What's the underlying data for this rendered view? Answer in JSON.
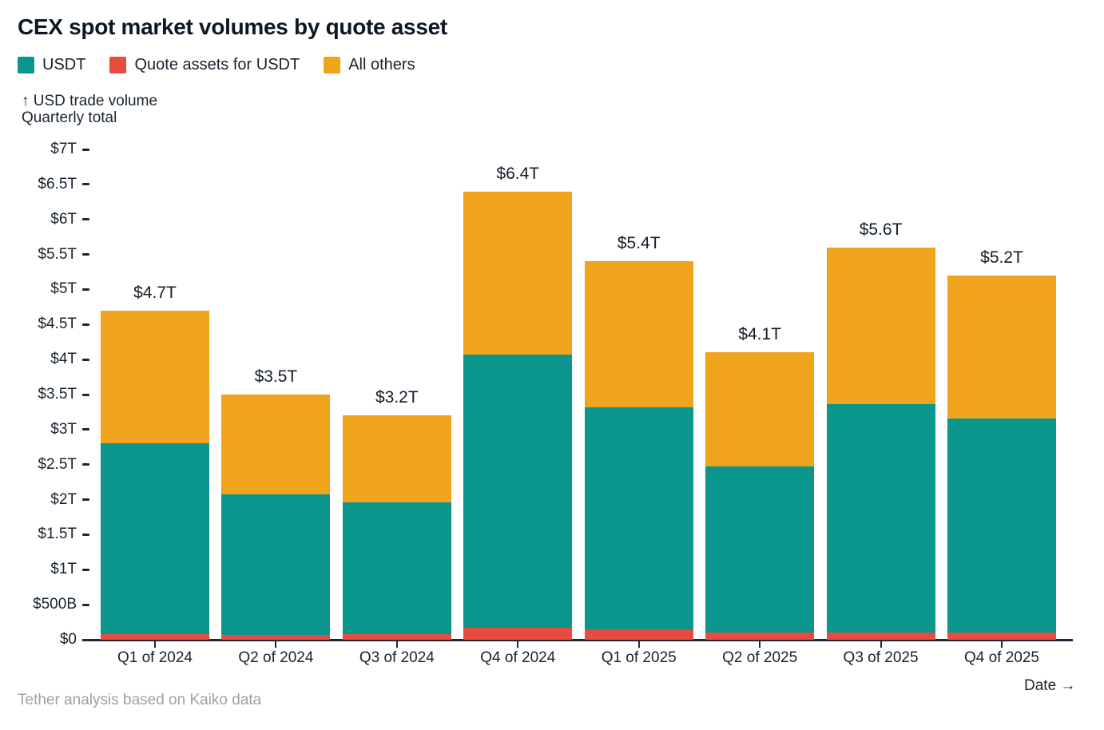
{
  "title": "CEX spot market volumes by quote asset",
  "legend": [
    {
      "label": "USDT",
      "color": "#0a968c"
    },
    {
      "label": "Quote assets for USDT",
      "color": "#e84b40"
    },
    {
      "label": "All others",
      "color": "#f0a41e"
    }
  ],
  "y_axis_title_line1": "↑ USD trade volume",
  "y_axis_title_line2": "Quarterly total",
  "x_axis_label": "Date →",
  "footer": "Tether analysis based on Kaiko data",
  "colors": {
    "usdt_teal": "#0a968c",
    "quote_red": "#e84b40",
    "others_orange": "#f0a41e",
    "text_dark": "#142130",
    "text_gray": "#9aa2a9",
    "axis_line": "#1f2a36"
  },
  "chart_data": {
    "type": "bar",
    "stacked": true,
    "title": "CEX spot market volumes by quote asset",
    "xlabel": "Date",
    "ylabel": "USD trade volume, Quarterly total",
    "ylim": [
      0,
      7
    ],
    "ylim_unit": "trillion USD",
    "grid": false,
    "legend_position": "top-left",
    "categories": [
      "Q1 of 2024",
      "Q2 of 2024",
      "Q3 of 2024",
      "Q4 of 2024",
      "Q1 of 2025",
      "Q2 of 2025",
      "Q3 of 2025",
      "Q4 of 2025"
    ],
    "stack_order_bottom_to_top": [
      "Quote assets for USDT",
      "USDT",
      "All others"
    ],
    "series": [
      {
        "name": "Quote assets for USDT",
        "color": "#e84b40",
        "values": [
          0.08,
          0.07,
          0.08,
          0.17,
          0.15,
          0.1,
          0.1,
          0.1
        ]
      },
      {
        "name": "USDT",
        "color": "#0a968c",
        "values": [
          2.72,
          2.01,
          1.88,
          3.9,
          3.17,
          2.37,
          3.26,
          3.06
        ]
      },
      {
        "name": "All others",
        "color": "#f0a41e",
        "values": [
          1.9,
          1.42,
          1.24,
          2.33,
          2.08,
          1.63,
          2.24,
          2.04
        ]
      }
    ],
    "totals": [
      4.7,
      3.5,
      3.2,
      6.4,
      5.4,
      4.1,
      5.6,
      5.2
    ],
    "total_labels": [
      "$4.7T",
      "$3.5T",
      "$3.2T",
      "$6.4T",
      "$5.4T",
      "$4.1T",
      "$5.6T",
      "$5.2T"
    ],
    "y_tick_labels": [
      "$7T",
      "$6.5T",
      "$6T",
      "$5.5T",
      "$5T",
      "$4.5T",
      "$4T",
      "$3.5T",
      "$3T",
      "$2.5T",
      "$2T",
      "$1.5T",
      "$1T",
      "$500B",
      "$0"
    ],
    "y_tick_values": [
      7,
      6.5,
      6,
      5.5,
      5,
      4.5,
      4,
      3.5,
      3,
      2.5,
      2,
      1.5,
      1,
      0.5,
      0
    ]
  }
}
